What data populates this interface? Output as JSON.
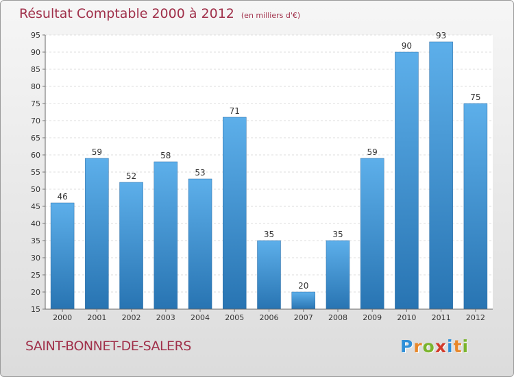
{
  "title": "Résultat Comptable 2000 à 2012",
  "unit": "(en milliers d'€)",
  "commune": "SAINT-BONNET-DE-SALERS",
  "logo": {
    "letters": [
      "P",
      "r",
      "o",
      "x",
      "i",
      "t",
      "i"
    ],
    "colors": [
      "#2f8fd8",
      "#e8872a",
      "#7ab42c",
      "#d23a2a",
      "#2f8fd8",
      "#e8872a",
      "#7ab42c"
    ]
  },
  "colors": {
    "bar_light": "#5dafea",
    "bar_dark": "#2874b2",
    "title": "#a0304a"
  },
  "chart_data": {
    "type": "bar",
    "categories": [
      "2000",
      "2001",
      "2002",
      "2003",
      "2004",
      "2005",
      "2006",
      "2007",
      "2008",
      "2009",
      "2010",
      "2011",
      "2012"
    ],
    "values": [
      46,
      59,
      52,
      58,
      53,
      71,
      35,
      20,
      35,
      59,
      90,
      93,
      75
    ],
    "ylim": [
      15,
      95
    ],
    "yticks": [
      15,
      20,
      25,
      30,
      35,
      40,
      45,
      50,
      55,
      60,
      65,
      70,
      75,
      80,
      85,
      90,
      95
    ],
    "grid": true
  }
}
